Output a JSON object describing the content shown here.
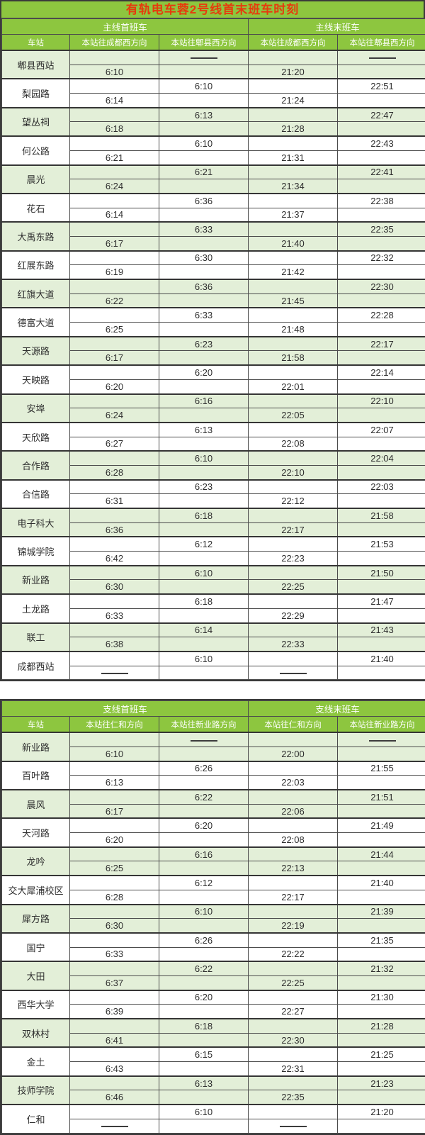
{
  "title": "有轨电车蓉2号线首末班车时刻",
  "no_service_dash": "——",
  "colors": {
    "header_green": "#8dc63f",
    "title_red": "#e73a0d",
    "stripe_green": "#e3efd8",
    "stripe_white": "#ffffff",
    "border_dark": "#3a3a3a",
    "time_text": "#2e2e2e"
  },
  "main_table": {
    "group_headers": [
      "主线首班车",
      "主线末班车"
    ],
    "station_col_header": "车站",
    "direction_headers": [
      "本站往成都西方向",
      "本站往郫县西方向",
      "本站往成都西方向",
      "本站往郫县西方向"
    ],
    "rows": [
      {
        "station": "郫县西站",
        "cells": [
          [
            "",
            "——",
            "",
            "——"
          ],
          [
            "6:10",
            "",
            "21:20",
            ""
          ]
        ]
      },
      {
        "station": "梨园路",
        "cells": [
          [
            "",
            "6:10",
            "",
            "22:51"
          ],
          [
            "6:14",
            "",
            "21:24",
            ""
          ]
        ]
      },
      {
        "station": "望丛祠",
        "cells": [
          [
            "",
            "6:13",
            "",
            "22:47"
          ],
          [
            "6:18",
            "",
            "21:28",
            ""
          ]
        ]
      },
      {
        "station": "何公路",
        "cells": [
          [
            "",
            "6:10",
            "",
            "22:43"
          ],
          [
            "6:21",
            "",
            "21:31",
            ""
          ]
        ]
      },
      {
        "station": "晨光",
        "cells": [
          [
            "",
            "6:21",
            "",
            "22:41"
          ],
          [
            "6:24",
            "",
            "21:34",
            ""
          ]
        ]
      },
      {
        "station": "花石",
        "cells": [
          [
            "",
            "6:36",
            "",
            "22:38"
          ],
          [
            "6:14",
            "",
            "21:37",
            ""
          ]
        ]
      },
      {
        "station": "大禹东路",
        "cells": [
          [
            "",
            "6:33",
            "",
            "22:35"
          ],
          [
            "6:17",
            "",
            "21:40",
            ""
          ]
        ]
      },
      {
        "station": "红展东路",
        "cells": [
          [
            "",
            "6:30",
            "",
            "22:32"
          ],
          [
            "6:19",
            "",
            "21:42",
            ""
          ]
        ]
      },
      {
        "station": "红旗大道",
        "cells": [
          [
            "",
            "6:36",
            "",
            "22:30"
          ],
          [
            "6:22",
            "",
            "21:45",
            ""
          ]
        ]
      },
      {
        "station": "德富大道",
        "cells": [
          [
            "",
            "6:33",
            "",
            "22:28"
          ],
          [
            "6:25",
            "",
            "21:48",
            ""
          ]
        ]
      },
      {
        "station": "天源路",
        "cells": [
          [
            "",
            "6:23",
            "",
            "22:17"
          ],
          [
            "6:17",
            "",
            "21:58",
            ""
          ]
        ]
      },
      {
        "station": "天映路",
        "cells": [
          [
            "",
            "6:20",
            "",
            "22:14"
          ],
          [
            "6:20",
            "",
            "22:01",
            ""
          ]
        ]
      },
      {
        "station": "安埠",
        "cells": [
          [
            "",
            "6:16",
            "",
            "22:10"
          ],
          [
            "6:24",
            "",
            "22:05",
            ""
          ]
        ]
      },
      {
        "station": "天欣路",
        "cells": [
          [
            "",
            "6:13",
            "",
            "22:07"
          ],
          [
            "6:27",
            "",
            "22:08",
            ""
          ]
        ]
      },
      {
        "station": "合作路",
        "cells": [
          [
            "",
            "6:10",
            "",
            "22:04"
          ],
          [
            "6:28",
            "",
            "22:10",
            ""
          ]
        ]
      },
      {
        "station": "合信路",
        "cells": [
          [
            "",
            "6:23",
            "",
            "22:03"
          ],
          [
            "6:31",
            "",
            "22:12",
            ""
          ]
        ]
      },
      {
        "station": "电子科大",
        "cells": [
          [
            "",
            "6:18",
            "",
            "21:58"
          ],
          [
            "6:36",
            "",
            "22:17",
            ""
          ]
        ]
      },
      {
        "station": "锦城学院",
        "cells": [
          [
            "",
            "6:12",
            "",
            "21:53"
          ],
          [
            "6:42",
            "",
            "22:23",
            ""
          ]
        ]
      },
      {
        "station": "新业路",
        "cells": [
          [
            "",
            "6:10",
            "",
            "21:50"
          ],
          [
            "6:30",
            "",
            "22:25",
            ""
          ]
        ]
      },
      {
        "station": "土龙路",
        "cells": [
          [
            "",
            "6:18",
            "",
            "21:47"
          ],
          [
            "6:33",
            "",
            "22:29",
            ""
          ]
        ]
      },
      {
        "station": "联工",
        "cells": [
          [
            "",
            "6:14",
            "",
            "21:43"
          ],
          [
            "6:38",
            "",
            "22:33",
            ""
          ]
        ]
      },
      {
        "station": "成都西站",
        "cells": [
          [
            "",
            "6:10",
            "",
            "21:40"
          ],
          [
            "——",
            "",
            "——",
            ""
          ]
        ]
      }
    ]
  },
  "branch_table": {
    "group_headers": [
      "支线首班车",
      "支线末班车"
    ],
    "station_col_header": "车站",
    "direction_headers": [
      "本站往仁和方向",
      "本站往新业路方向",
      "本站往仁和方向",
      "本站往新业路方向"
    ],
    "rows": [
      {
        "station": "新业路",
        "cells": [
          [
            "",
            "——",
            "",
            "——"
          ],
          [
            "6:10",
            "",
            "22:00",
            ""
          ]
        ]
      },
      {
        "station": "百叶路",
        "cells": [
          [
            "",
            "6:26",
            "",
            "21:55"
          ],
          [
            "6:13",
            "",
            "22:03",
            ""
          ]
        ]
      },
      {
        "station": "晨风",
        "cells": [
          [
            "",
            "6:22",
            "",
            "21:51"
          ],
          [
            "6:17",
            "",
            "22:06",
            ""
          ]
        ]
      },
      {
        "station": "天河路",
        "cells": [
          [
            "",
            "6:20",
            "",
            "21:49"
          ],
          [
            "6:20",
            "",
            "22:08",
            ""
          ]
        ]
      },
      {
        "station": "龙吟",
        "cells": [
          [
            "",
            "6:16",
            "",
            "21:44"
          ],
          [
            "6:25",
            "",
            "22:13",
            ""
          ]
        ]
      },
      {
        "station": "交大犀浦校区",
        "cells": [
          [
            "",
            "6:12",
            "",
            "21:40"
          ],
          [
            "6:28",
            "",
            "22:17",
            ""
          ]
        ]
      },
      {
        "station": "犀方路",
        "cells": [
          [
            "",
            "6:10",
            "",
            "21:39"
          ],
          [
            "6:30",
            "",
            "22:19",
            ""
          ]
        ]
      },
      {
        "station": "国宁",
        "cells": [
          [
            "",
            "6:26",
            "",
            "21:35"
          ],
          [
            "6:33",
            "",
            "22:22",
            ""
          ]
        ]
      },
      {
        "station": "大田",
        "cells": [
          [
            "",
            "6:22",
            "",
            "21:32"
          ],
          [
            "6:37",
            "",
            "22:25",
            ""
          ]
        ]
      },
      {
        "station": "西华大学",
        "cells": [
          [
            "",
            "6:20",
            "",
            "21:30"
          ],
          [
            "6:39",
            "",
            "22:27",
            ""
          ]
        ]
      },
      {
        "station": "双林村",
        "cells": [
          [
            "",
            "6:18",
            "",
            "21:28"
          ],
          [
            "6:41",
            "",
            "22:30",
            ""
          ]
        ]
      },
      {
        "station": "金土",
        "cells": [
          [
            "",
            "6:15",
            "",
            "21:25"
          ],
          [
            "6:43",
            "",
            "22:31",
            ""
          ]
        ]
      },
      {
        "station": "技师学院",
        "cells": [
          [
            "",
            "6:13",
            "",
            "21:23"
          ],
          [
            "6:46",
            "",
            "22:35",
            ""
          ]
        ]
      },
      {
        "station": "仁和",
        "cells": [
          [
            "",
            "6:10",
            "",
            "21:20"
          ],
          [
            "——",
            "",
            "——",
            ""
          ]
        ]
      }
    ]
  }
}
